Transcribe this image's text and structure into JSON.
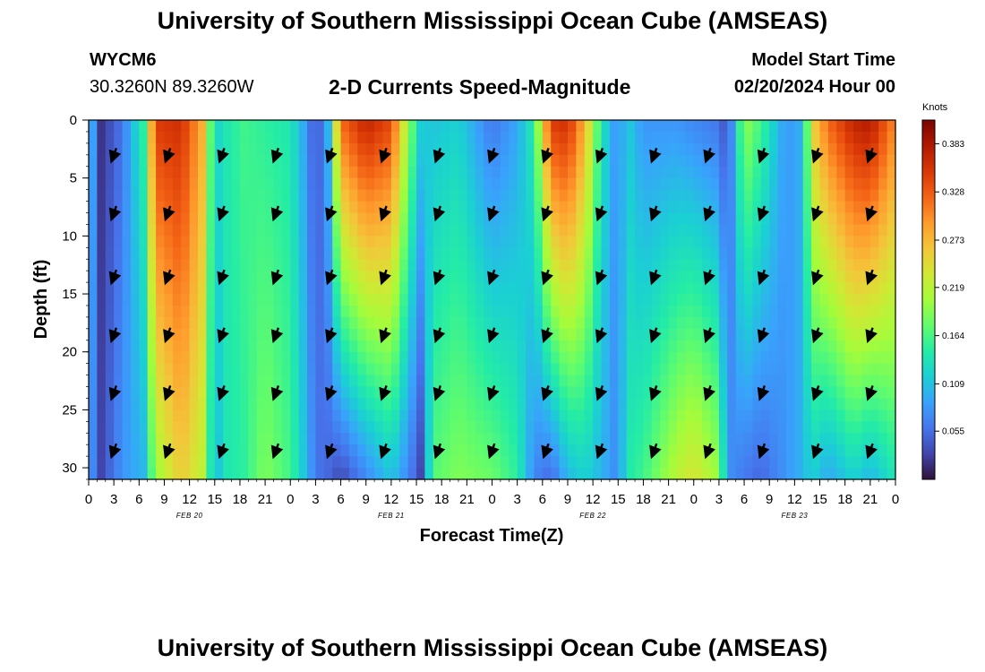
{
  "header": {
    "title": "University of Southern Mississippi Ocean Cube (AMSEAS)",
    "station_id": "WYCM6",
    "station_coords": "30.3260N  89.3260W",
    "product": "2-D Currents Speed-Magnitude",
    "model_start_label": "Model Start Time",
    "model_start_value": "02/20/2024 Hour 00"
  },
  "footer": {
    "title": "University of Southern Mississippi Ocean Cube (AMSEAS)"
  },
  "colors": {
    "colormap": [
      "#30123b",
      "#4145ab",
      "#4675ed",
      "#39a2fc",
      "#1bcfd4",
      "#24eca6",
      "#61fc6c",
      "#a4fc3b",
      "#d1e834",
      "#f3c63a",
      "#fe9b2d",
      "#f36315",
      "#d93806",
      "#b11901",
      "#7a0403"
    ],
    "arrow": "#000000",
    "axis": "#000000"
  },
  "chart_data": {
    "type": "heatmap",
    "title": "2-D Currents Speed-Magnitude",
    "xlabel": "Forecast Time(Z)",
    "ylabel": "Depth (ft)",
    "x_range_hours": [
      0,
      96
    ],
    "x_tick_hours": [
      0,
      3,
      6,
      9,
      12,
      15,
      18,
      21,
      24,
      27,
      30,
      33,
      36,
      39,
      42,
      45,
      48,
      51,
      54,
      57,
      60,
      63,
      66,
      69,
      72,
      75,
      78,
      81,
      84,
      87,
      90,
      93,
      96
    ],
    "x_tick_labels": [
      "0",
      "3",
      "6",
      "9",
      "12",
      "15",
      "18",
      "21",
      "0",
      "3",
      "6",
      "9",
      "12",
      "15",
      "18",
      "21",
      "0",
      "3",
      "6",
      "9",
      "12",
      "15",
      "18",
      "21",
      "0",
      "3",
      "6",
      "9",
      "12",
      "15",
      "18",
      "21",
      "0"
    ],
    "date_labels": [
      {
        "label": "FEB 20",
        "hour": 12
      },
      {
        "label": "FEB 21",
        "hour": 36
      },
      {
        "label": "FEB 22",
        "hour": 60
      },
      {
        "label": "FEB 23",
        "hour": 84
      }
    ],
    "y_range_ft": [
      0,
      31
    ],
    "y_ticks": [
      0,
      5,
      10,
      15,
      20,
      25,
      30
    ],
    "y_tick_labels": [
      "0",
      "5",
      "10",
      "15",
      "20",
      "25",
      "30"
    ],
    "colorbar": {
      "unit": "Knots",
      "range": [
        0.0,
        0.41
      ],
      "tick_values": [
        0.383,
        0.328,
        0.273,
        0.219,
        0.164,
        0.109,
        0.055
      ],
      "tick_labels": [
        "0.383",
        "0.328",
        "0.273",
        "0.219",
        "0.164",
        "0.109",
        "0.055"
      ]
    },
    "speed_bands": [
      {
        "hour": 0,
        "surface": 0.12,
        "bottom": 0.09
      },
      {
        "hour": 1.5,
        "surface": 0.02,
        "bottom": 0.03
      },
      {
        "hour": 4,
        "surface": 0.06,
        "bottom": 0.08
      },
      {
        "hour": 6.5,
        "surface": 0.15,
        "bottom": 0.1
      },
      {
        "hour": 8,
        "surface": 0.35,
        "bottom": 0.2
      },
      {
        "hour": 11,
        "surface": 0.36,
        "bottom": 0.26
      },
      {
        "hour": 13.5,
        "surface": 0.28,
        "bottom": 0.22
      },
      {
        "hour": 15,
        "surface": 0.12,
        "bottom": 0.1
      },
      {
        "hour": 16.5,
        "surface": 0.14,
        "bottom": 0.14
      },
      {
        "hour": 18.5,
        "surface": 0.16,
        "bottom": 0.15
      },
      {
        "hour": 21,
        "surface": 0.15,
        "bottom": 0.19
      },
      {
        "hour": 24,
        "surface": 0.14,
        "bottom": 0.16
      },
      {
        "hour": 26,
        "surface": 0.08,
        "bottom": 0.1
      },
      {
        "hour": 27,
        "surface": 0.03,
        "bottom": 0.06
      },
      {
        "hour": 28.5,
        "surface": 0.1,
        "bottom": 0.05
      },
      {
        "hour": 30,
        "surface": 0.32,
        "bottom": 0.03
      },
      {
        "hour": 33,
        "surface": 0.37,
        "bottom": 0.07
      },
      {
        "hour": 36,
        "surface": 0.34,
        "bottom": 0.11
      },
      {
        "hour": 38,
        "surface": 0.2,
        "bottom": 0.07
      },
      {
        "hour": 39.5,
        "surface": 0.12,
        "bottom": 0.03
      },
      {
        "hour": 41,
        "surface": 0.11,
        "bottom": 0.17
      },
      {
        "hour": 44,
        "surface": 0.12,
        "bottom": 0.19
      },
      {
        "hour": 48,
        "surface": 0.06,
        "bottom": 0.18
      },
      {
        "hour": 51,
        "surface": 0.09,
        "bottom": 0.15
      },
      {
        "hour": 53,
        "surface": 0.15,
        "bottom": 0.07
      },
      {
        "hour": 55,
        "surface": 0.35,
        "bottom": 0.05
      },
      {
        "hour": 57,
        "surface": 0.36,
        "bottom": 0.1
      },
      {
        "hour": 59,
        "surface": 0.28,
        "bottom": 0.12
      },
      {
        "hour": 61,
        "surface": 0.14,
        "bottom": 0.1
      },
      {
        "hour": 63,
        "surface": 0.07,
        "bottom": 0.07
      },
      {
        "hour": 64,
        "surface": 0.12,
        "bottom": 0.14
      },
      {
        "hour": 66,
        "surface": 0.08,
        "bottom": 0.16
      },
      {
        "hour": 70,
        "surface": 0.08,
        "bottom": 0.22
      },
      {
        "hour": 72,
        "surface": 0.07,
        "bottom": 0.24
      },
      {
        "hour": 75,
        "surface": 0.06,
        "bottom": 0.2
      },
      {
        "hour": 76,
        "surface": 0.03,
        "bottom": 0.08
      },
      {
        "hour": 78,
        "surface": 0.2,
        "bottom": 0.06
      },
      {
        "hour": 80,
        "surface": 0.16,
        "bottom": 0.05
      },
      {
        "hour": 83,
        "surface": 0.08,
        "bottom": 0.08
      },
      {
        "hour": 85,
        "surface": 0.1,
        "bottom": 0.1
      },
      {
        "hour": 86,
        "surface": 0.25,
        "bottom": 0.12
      },
      {
        "hour": 88,
        "surface": 0.32,
        "bottom": 0.09
      },
      {
        "hour": 91,
        "surface": 0.37,
        "bottom": 0.12
      },
      {
        "hour": 93,
        "surface": 0.38,
        "bottom": 0.1
      },
      {
        "hour": 96,
        "surface": 0.3,
        "bottom": 0.14
      }
    ],
    "vector_rows_ft": [
      3,
      8,
      13.5,
      18.5,
      23.5,
      28.5
    ],
    "vector_directions_deg": [
      [
        200,
        200,
        200,
        200,
        200,
        200,
        200,
        200,
        200,
        200,
        200,
        200,
        200,
        200,
        200
      ],
      [
        200,
        200,
        200,
        200,
        200,
        200,
        200,
        200,
        200,
        200,
        200,
        200,
        200,
        200,
        200
      ],
      [
        200,
        200,
        200,
        200,
        200,
        200,
        200,
        200,
        200,
        200,
        200,
        200,
        200,
        200,
        200
      ],
      [
        200,
        200,
        200,
        200,
        200,
        200,
        200,
        200,
        200,
        200,
        200,
        200,
        200,
        200,
        200
      ],
      [
        200,
        200,
        200,
        200,
        200,
        200,
        200,
        200,
        200,
        200,
        200,
        200,
        200,
        200,
        200
      ],
      [
        200,
        200,
        200,
        200,
        200,
        200,
        200,
        200,
        200,
        200,
        200,
        200,
        200,
        200,
        200
      ]
    ]
  }
}
